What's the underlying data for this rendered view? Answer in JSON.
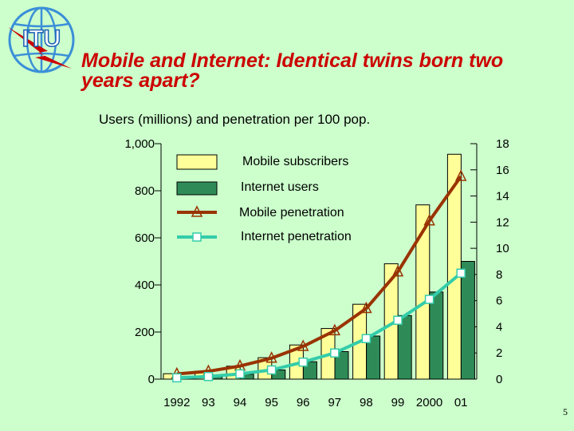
{
  "logo": {
    "text": "ITU"
  },
  "header": {
    "title": "Mobile and Internet: Identical twins born two years apart?",
    "title_line1": "Mobile and Internet: Identical twins born two",
    "title_line2": "years apart?"
  },
  "page_number": "5",
  "colors": {
    "background": "#ccffcc",
    "title": "#cc0000",
    "mobile_bar": "#ffff99",
    "internet_bar": "#2e8b57",
    "mobile_line": "#993300",
    "internet_line": "#33ccaa"
  },
  "chart_data": {
    "type": "bar",
    "title": "Users (millions) and penetration per 100 pop.",
    "categories": [
      "1992",
      "93",
      "94",
      "95",
      "96",
      "97",
      "98",
      "99",
      "2000",
      "01"
    ],
    "y_left": {
      "ticks": [
        "0",
        "200",
        "400",
        "600",
        "800",
        "1,000"
      ],
      "range": [
        0,
        1000
      ]
    },
    "y_right": {
      "ticks": [
        "0",
        "2",
        "4",
        "6",
        "8",
        "10",
        "12",
        "14",
        "16",
        "18"
      ],
      "range": [
        0,
        18
      ]
    },
    "series": [
      {
        "name": "Mobile subscribers",
        "kind": "bar",
        "axis": "left",
        "values": [
          23,
          34,
          55,
          91,
          145,
          215,
          318,
          490,
          740,
          955
        ]
      },
      {
        "name": "Internet users",
        "kind": "bar",
        "axis": "left",
        "values": [
          5,
          10,
          21,
          39,
          74,
          117,
          183,
          270,
          370,
          500
        ]
      },
      {
        "name": "Mobile penetration",
        "kind": "line",
        "axis": "right",
        "marker": "triangle",
        "values": [
          0.4,
          0.6,
          1.0,
          1.6,
          2.5,
          3.7,
          5.4,
          8.2,
          12.1,
          15.5
        ]
      },
      {
        "name": "Internet penetration",
        "kind": "line",
        "axis": "right",
        "marker": "square",
        "values": [
          0.1,
          0.2,
          0.4,
          0.7,
          1.3,
          2.0,
          3.1,
          4.5,
          6.1,
          8.1
        ]
      }
    ],
    "grid": false,
    "legend": "top-left"
  }
}
